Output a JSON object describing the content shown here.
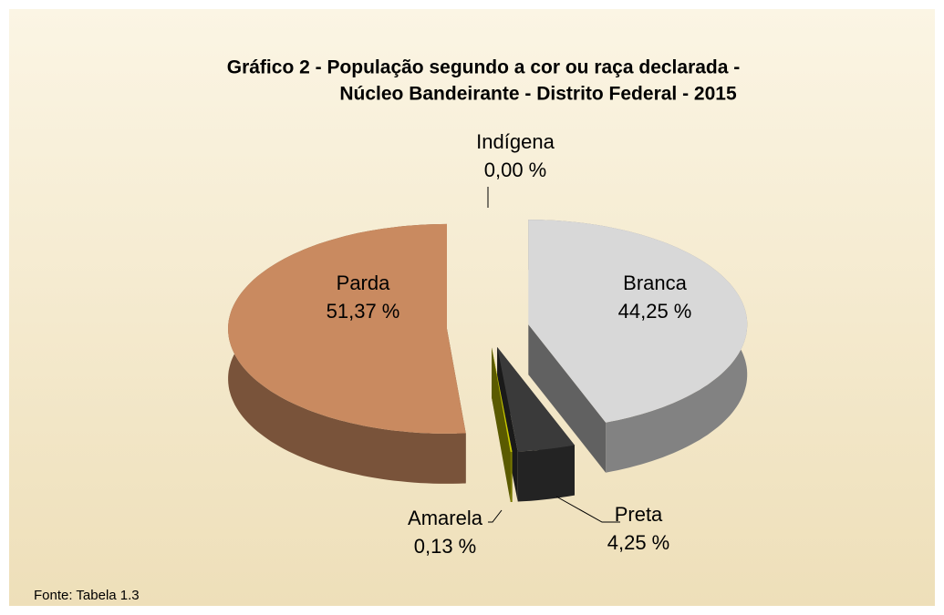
{
  "chart_data": {
    "type": "pie3d",
    "title": [
      "Gráfico 2 - População segundo a cor ou raça declarada -",
      "Núcleo Bandeirante  - Distrito Federal - 2015"
    ],
    "categories": [
      "Branca",
      "Preta",
      "Amarela",
      "Parda",
      "Indígena"
    ],
    "values": [
      44.25,
      4.25,
      0.13,
      51.37,
      0.0
    ],
    "value_labels": [
      "44,25 %",
      "4,25 %",
      "0,13 %",
      "51,37 %",
      "0,00 %"
    ],
    "colors": [
      "#d8d8d8",
      "#3a3a3a",
      "#c8c800",
      "#c98a60",
      "#4f81bd"
    ],
    "source": "Fonte: Tabela 1.3"
  }
}
